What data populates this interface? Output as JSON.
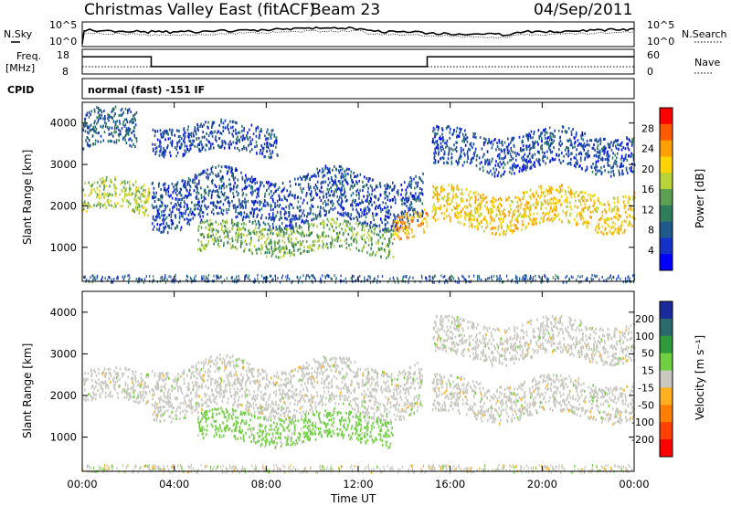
{
  "header": {
    "title": "Christmas Valley East (fitACF)",
    "beam": "Beam 23",
    "date": "04/Sep/2011"
  },
  "top_panels": {
    "nsky_label": "N.Sky",
    "nsearch_label": "N.Search",
    "freq_label_1": "Freq.",
    "freq_label_2": "[MHz]",
    "nave_label": "Nave",
    "cpid_label": "CPID",
    "cpid_value": "normal (fast) -151 IF",
    "noise_ticks": [
      "10^5",
      "10^0"
    ],
    "freq_ticks": [
      "18",
      "8"
    ],
    "nave_ticks": [
      "60",
      "0"
    ]
  },
  "axes": {
    "ylabel": "Slant Range [km]",
    "xlabel": "Time UT",
    "x_ticks": [
      "00:00",
      "04:00",
      "08:00",
      "12:00",
      "16:00",
      "20:00",
      "00:00"
    ],
    "y_ticks": [
      "1000",
      "2000",
      "3000",
      "4000"
    ]
  },
  "colorbars": {
    "power": {
      "label": "Power [dB]",
      "ticks": [
        "28",
        "24",
        "20",
        "16",
        "12",
        "8",
        "4"
      ],
      "colors": [
        "#ff0000",
        "#ff5a00",
        "#ffa000",
        "#ffd400",
        "#b8d438",
        "#5aa050",
        "#2e7d5a",
        "#1e5a8c",
        "#1432c8",
        "#0000ff"
      ]
    },
    "velocity": {
      "label": "Velocity [m s⁻¹]",
      "ticks": [
        "200",
        "100",
        "50",
        "15",
        "-15",
        "-50",
        "-100",
        "-200"
      ],
      "colors": [
        "#1a2a9a",
        "#2a6a6a",
        "#2e9a3a",
        "#70d040",
        "#c8c8c0",
        "#ffb020",
        "#ff8000",
        "#ff4000",
        "#ff0000"
      ]
    }
  },
  "chart_data": [
    {
      "type": "heatmap",
      "title": "Power",
      "xlabel": "Time UT",
      "ylabel": "Slant Range [km]",
      "xlim": [
        0,
        24
      ],
      "ylim": [
        180,
        4500
      ],
      "colorbar_label": "Power [dB]",
      "colorbar_range": [
        0,
        30
      ],
      "regions": [
        {
          "t": [
            0.0,
            2.9
          ],
          "range_km": [
            1850,
            2600
          ],
          "power_db": 16
        },
        {
          "t": [
            0.0,
            2.4
          ],
          "range_km": [
            3400,
            4300
          ],
          "power_db": 8
        },
        {
          "t": [
            3.0,
            14.8
          ],
          "range_km": [
            1600,
            2800
          ],
          "power_db": 6
        },
        {
          "t": [
            3.0,
            8.5
          ],
          "range_km": [
            3300,
            4000
          ],
          "power_db": 6
        },
        {
          "t": [
            5.0,
            13.5
          ],
          "range_km": [
            900,
            1600
          ],
          "power_db": 14
        },
        {
          "t": [
            13.5,
            15.0
          ],
          "range_km": [
            1300,
            1900
          ],
          "power_db": 22
        },
        {
          "t": [
            15.2,
            24.0
          ],
          "range_km": [
            1500,
            2400
          ],
          "power_db": 20
        },
        {
          "t": [
            15.2,
            24.0
          ],
          "range_km": [
            2900,
            3800
          ],
          "power_db": 6
        }
      ]
    },
    {
      "type": "heatmap",
      "title": "Velocity",
      "xlabel": "Time UT",
      "ylabel": "Slant Range [km]",
      "xlim": [
        0,
        24
      ],
      "ylim": [
        180,
        4500
      ],
      "colorbar_label": "Velocity [m s⁻¹]",
      "colorbar_range": [
        -200,
        200
      ],
      "regions": [
        {
          "t": [
            0.0,
            2.9
          ],
          "range_km": [
            1850,
            2600
          ],
          "velocity": 0
        },
        {
          "t": [
            3.0,
            14.8
          ],
          "range_km": [
            1600,
            2800
          ],
          "velocity": 0
        },
        {
          "t": [
            5.0,
            13.5
          ],
          "range_km": [
            900,
            1600
          ],
          "velocity": 40
        },
        {
          "t": [
            15.2,
            24.0
          ],
          "range_km": [
            1500,
            2400
          ],
          "velocity": 0
        },
        {
          "t": [
            15.2,
            24.0
          ],
          "range_km": [
            2900,
            3800
          ],
          "velocity": 0
        }
      ]
    },
    {
      "type": "line",
      "title": "Frequency",
      "xlabel": "Time UT",
      "ylabel": "Freq. [MHz]",
      "ylim": [
        8,
        18
      ],
      "x": [
        0,
        3,
        3,
        15,
        15,
        24
      ],
      "y": [
        15,
        15,
        11,
        11,
        15,
        15
      ]
    }
  ]
}
